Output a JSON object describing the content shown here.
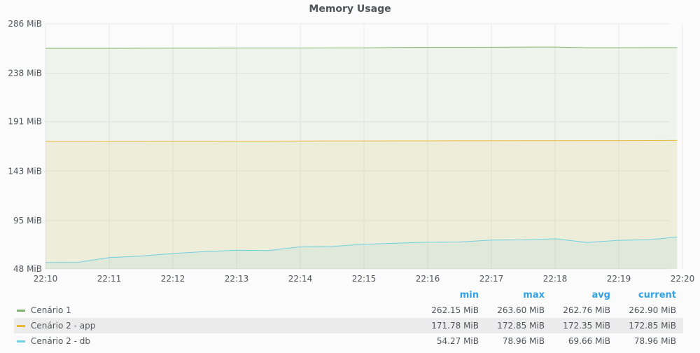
{
  "panel": {
    "title": "Memory Usage"
  },
  "colors": {
    "series1": "#7eb26d",
    "series2": "#eab839",
    "series3": "#6ed0e0",
    "grid": "#e8e8e8",
    "axis_text": "#52545c",
    "legend_header": "#33a2e5"
  },
  "legend": {
    "headers": {
      "min": "min",
      "max": "max",
      "avg": "avg",
      "current": "current"
    },
    "rows": [
      {
        "name": "Cenário 1",
        "min": "262.15 MiB",
        "max": "263.60 MiB",
        "avg": "262.76 MiB",
        "current": "262.90 MiB"
      },
      {
        "name": "Cenário 2 - app",
        "min": "171.78 MiB",
        "max": "172.85 MiB",
        "avg": "172.35 MiB",
        "current": "172.85 MiB"
      },
      {
        "name": "Cenário 2 - db",
        "min": "54.27 MiB",
        "max": "78.96 MiB",
        "avg": "69.66 MiB",
        "current": "78.96 MiB"
      }
    ]
  },
  "chart_data": {
    "type": "area",
    "title": "Memory Usage",
    "xlabel": "",
    "ylabel": "",
    "grid": true,
    "legend_position": "bottom",
    "x_ticks": [
      "22:10",
      "22:11",
      "22:12",
      "22:13",
      "22:14",
      "22:15",
      "22:16",
      "22:17",
      "22:18",
      "22:19",
      "22:20"
    ],
    "y_ticks": [
      "48 MiB",
      "95 MiB",
      "143 MiB",
      "191 MiB",
      "238 MiB",
      "286 MiB"
    ],
    "ylim": [
      48,
      286
    ],
    "xlim": [
      "22:10",
      "22:20"
    ],
    "x": [
      "22:10:00",
      "22:10:30",
      "22:11:00",
      "22:11:30",
      "22:12:00",
      "22:12:30",
      "22:13:00",
      "22:13:30",
      "22:14:00",
      "22:14:30",
      "22:15:00",
      "22:15:30",
      "22:16:00",
      "22:16:30",
      "22:17:00",
      "22:17:30",
      "22:18:00",
      "22:18:30",
      "22:19:00",
      "22:19:30",
      "22:19:55"
    ],
    "series": [
      {
        "name": "Cenário 1",
        "values": [
          262.2,
          262.2,
          262.2,
          262.3,
          262.4,
          262.4,
          262.5,
          262.5,
          262.5,
          262.6,
          262.6,
          263.1,
          263.2,
          263.2,
          263.3,
          263.4,
          263.5,
          262.8,
          262.8,
          262.9,
          262.9
        ]
      },
      {
        "name": "Cenário 2 - app",
        "values": [
          171.8,
          171.8,
          171.9,
          171.9,
          172.0,
          172.0,
          172.1,
          172.1,
          172.2,
          172.3,
          172.3,
          172.4,
          172.4,
          172.5,
          172.5,
          172.6,
          172.6,
          172.7,
          172.7,
          172.8,
          172.85
        ]
      },
      {
        "name": "Cenário 2 - db",
        "values": [
          54.3,
          54.4,
          59.0,
          60.5,
          63.0,
          64.8,
          66.2,
          65.8,
          69.5,
          69.8,
          72.0,
          73.0,
          74.0,
          74.2,
          76.0,
          76.2,
          77.3,
          73.8,
          75.8,
          76.5,
          79.0
        ]
      }
    ]
  }
}
